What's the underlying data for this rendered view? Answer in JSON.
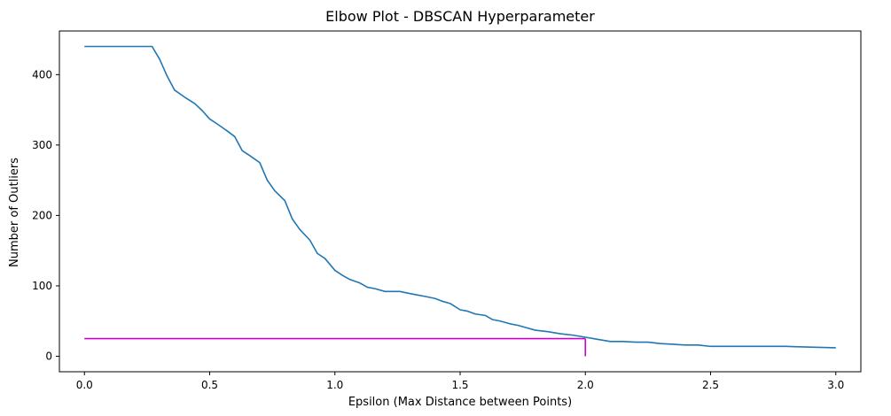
{
  "chart_data": {
    "type": "line",
    "title": "Elbow Plot - DBSCAN Hyperparameter",
    "xlabel": "Epsilon (Max Distance between Points)",
    "ylabel": "Number of Outliers",
    "xlim": [
      -0.1,
      3.1
    ],
    "ylim": [
      -22,
      462
    ],
    "x_ticks": [
      0.0,
      0.5,
      1.0,
      1.5,
      2.0,
      2.5,
      3.0
    ],
    "x_tick_labels": [
      "0.0",
      "0.5",
      "1.0",
      "1.5",
      "2.0",
      "2.5",
      "3.0"
    ],
    "y_ticks": [
      0,
      100,
      200,
      300,
      400
    ],
    "y_tick_labels": [
      "0",
      "100",
      "200",
      "300",
      "400"
    ],
    "grid": false,
    "series": [
      {
        "color": "#1f77b4",
        "x": [
          0.0,
          0.05,
          0.1,
          0.15,
          0.2,
          0.25,
          0.27,
          0.3,
          0.33,
          0.36,
          0.4,
          0.44,
          0.47,
          0.5,
          0.53,
          0.57,
          0.6,
          0.63,
          0.66,
          0.7,
          0.73,
          0.76,
          0.8,
          0.83,
          0.86,
          0.9,
          0.93,
          0.96,
          1.0,
          1.03,
          1.06,
          1.1,
          1.13,
          1.16,
          1.2,
          1.23,
          1.26,
          1.3,
          1.33,
          1.36,
          1.4,
          1.43,
          1.46,
          1.5,
          1.53,
          1.56,
          1.6,
          1.63,
          1.66,
          1.7,
          1.73,
          1.76,
          1.8,
          1.85,
          1.9,
          1.95,
          2.0,
          2.05,
          2.1,
          2.15,
          2.2,
          2.25,
          2.3,
          2.35,
          2.4,
          2.45,
          2.5,
          2.6,
          2.7,
          2.8,
          2.9,
          3.0
        ],
        "values": [
          440,
          440,
          440,
          440,
          440,
          440,
          440,
          422,
          398,
          378,
          368,
          359,
          349,
          337,
          330,
          320,
          312,
          292,
          285,
          275,
          250,
          235,
          221,
          195,
          180,
          165,
          146,
          139,
          122,
          115,
          109,
          104,
          98,
          96,
          92,
          92,
          92,
          89,
          87,
          85,
          82,
          78,
          75,
          66,
          64,
          60,
          58,
          52,
          50,
          46,
          44,
          41,
          37,
          35,
          32,
          30,
          27,
          24,
          21,
          21,
          20,
          20,
          18,
          17,
          16,
          16,
          14,
          14,
          14,
          14,
          13,
          12
        ]
      },
      {
        "color": "#cc00cc",
        "x": [
          0.0,
          2.0
        ],
        "values": [
          25,
          25
        ]
      },
      {
        "color": "#cc00cc",
        "x": [
          2.0,
          2.0
        ],
        "values": [
          25,
          0
        ]
      }
    ]
  }
}
